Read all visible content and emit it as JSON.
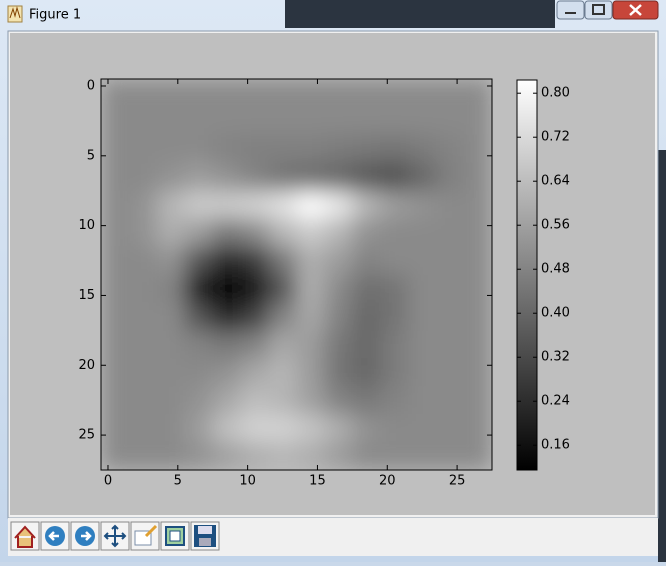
{
  "window": {
    "title": "Figure 1"
  },
  "chart_data": {
    "type": "heatmap",
    "cmap": "gray",
    "x": [
      0,
      2,
      4,
      6,
      8,
      10,
      12,
      14,
      16,
      18,
      20,
      22,
      24,
      26
    ],
    "y": [
      0,
      2,
      4,
      6,
      8,
      10,
      12,
      14,
      16,
      18,
      20,
      22,
      24,
      26
    ],
    "z": [
      [
        0.5,
        0.5,
        0.5,
        0.5,
        0.5,
        0.5,
        0.5,
        0.5,
        0.5,
        0.5,
        0.5,
        0.5,
        0.5,
        0.5
      ],
      [
        0.5,
        0.5,
        0.5,
        0.5,
        0.5,
        0.5,
        0.5,
        0.5,
        0.5,
        0.5,
        0.5,
        0.5,
        0.5,
        0.5
      ],
      [
        0.5,
        0.5,
        0.5,
        0.5,
        0.48,
        0.47,
        0.47,
        0.47,
        0.46,
        0.45,
        0.44,
        0.46,
        0.48,
        0.5
      ],
      [
        0.5,
        0.5,
        0.52,
        0.55,
        0.52,
        0.48,
        0.44,
        0.42,
        0.4,
        0.36,
        0.34,
        0.4,
        0.47,
        0.5
      ],
      [
        0.5,
        0.52,
        0.62,
        0.68,
        0.68,
        0.7,
        0.74,
        0.82,
        0.76,
        0.62,
        0.55,
        0.52,
        0.5,
        0.5
      ],
      [
        0.5,
        0.52,
        0.6,
        0.55,
        0.45,
        0.5,
        0.62,
        0.68,
        0.62,
        0.52,
        0.5,
        0.5,
        0.5,
        0.5
      ],
      [
        0.5,
        0.5,
        0.52,
        0.35,
        0.22,
        0.28,
        0.45,
        0.6,
        0.55,
        0.48,
        0.5,
        0.5,
        0.5,
        0.5
      ],
      [
        0.5,
        0.5,
        0.48,
        0.2,
        0.12,
        0.18,
        0.35,
        0.6,
        0.5,
        0.42,
        0.44,
        0.5,
        0.5,
        0.5
      ],
      [
        0.5,
        0.5,
        0.5,
        0.35,
        0.22,
        0.3,
        0.48,
        0.58,
        0.48,
        0.4,
        0.44,
        0.5,
        0.5,
        0.5
      ],
      [
        0.5,
        0.5,
        0.5,
        0.48,
        0.45,
        0.48,
        0.58,
        0.55,
        0.45,
        0.4,
        0.46,
        0.5,
        0.5,
        0.5
      ],
      [
        0.5,
        0.5,
        0.5,
        0.5,
        0.52,
        0.58,
        0.62,
        0.55,
        0.44,
        0.4,
        0.46,
        0.5,
        0.5,
        0.5
      ],
      [
        0.5,
        0.5,
        0.5,
        0.52,
        0.58,
        0.64,
        0.62,
        0.56,
        0.48,
        0.45,
        0.48,
        0.5,
        0.5,
        0.5
      ],
      [
        0.5,
        0.5,
        0.5,
        0.55,
        0.65,
        0.7,
        0.7,
        0.66,
        0.6,
        0.52,
        0.5,
        0.5,
        0.5,
        0.5
      ],
      [
        0.5,
        0.5,
        0.5,
        0.52,
        0.56,
        0.6,
        0.62,
        0.6,
        0.55,
        0.5,
        0.5,
        0.5,
        0.5,
        0.5
      ]
    ],
    "xlim": [
      -0.5,
      27.5
    ],
    "ylim": [
      27.5,
      -0.5
    ],
    "xticks": [
      0,
      5,
      10,
      15,
      20,
      25
    ],
    "yticks": [
      0,
      5,
      10,
      15,
      20,
      25
    ],
    "colorbar": {
      "clim": [
        0.115,
        0.824
      ],
      "ticks": [
        0.16,
        0.24,
        0.32,
        {
          "value": 0.4,
          "label": "0.40"
        },
        0.48,
        0.56,
        0.64,
        0.72,
        {
          "value": 0.8,
          "label": "0.80"
        }
      ]
    }
  }
}
